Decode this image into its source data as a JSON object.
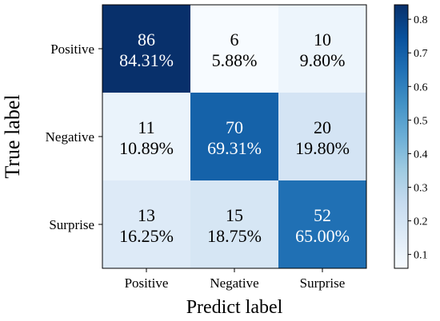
{
  "chart_data": {
    "type": "heatmap",
    "title": "",
    "xlabel": "Predict label",
    "ylabel": "True label",
    "x_categories": [
      "Positive",
      "Negative",
      "Surprise"
    ],
    "y_categories": [
      "Positive",
      "Negative",
      "Surprise"
    ],
    "counts": [
      [
        86,
        6,
        10
      ],
      [
        11,
        70,
        20
      ],
      [
        13,
        15,
        52
      ]
    ],
    "percent_labels": [
      [
        "84.31%",
        "5.88%",
        "9.80%"
      ],
      [
        "10.89%",
        "69.31%",
        "19.80%"
      ],
      [
        "16.25%",
        "18.75%",
        "65.00%"
      ]
    ],
    "values": [
      [
        0.8431,
        0.0588,
        0.098
      ],
      [
        0.1089,
        0.6931,
        0.198
      ],
      [
        0.1625,
        0.1875,
        0.65
      ]
    ],
    "colormap": "Blues",
    "colorbar": {
      "min": 0.0588,
      "max": 0.8431,
      "ticks": [
        0.1,
        0.2,
        0.3,
        0.4,
        0.5,
        0.6,
        0.7,
        0.8
      ],
      "tick_labels": [
        "0.1",
        "0.2",
        "0.3",
        "0.4",
        "0.5",
        "0.6",
        "0.7",
        "0.8"
      ]
    }
  }
}
